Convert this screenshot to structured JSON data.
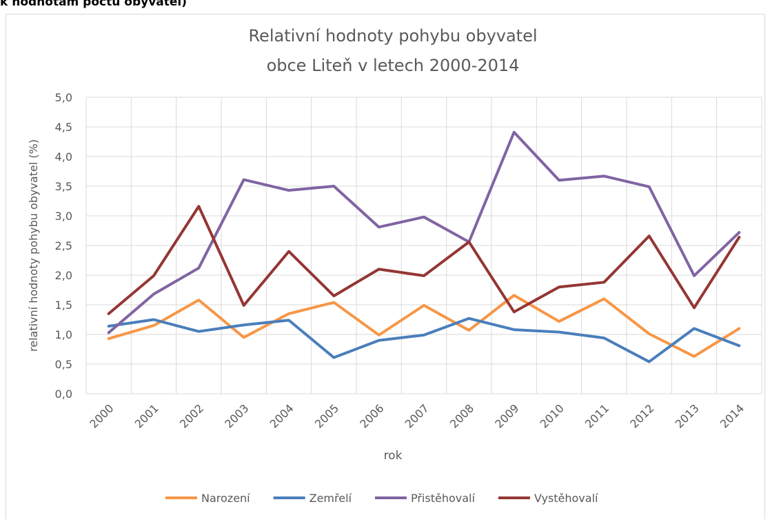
{
  "caption": "k hodnotám počtu obyvatel)",
  "chart_data": {
    "type": "line",
    "title": [
      "Relativní hodnoty pohybu obyvatel",
      "obce Liteň v letech 2000-2014"
    ],
    "x_label": "rok",
    "y_label": "relativní hodnoty pohybu obyvatel (%)",
    "categories": [
      "2000",
      "2001",
      "2002",
      "2003",
      "2004",
      "2005",
      "2006",
      "2007",
      "2008",
      "2009",
      "2010",
      "2011",
      "2012",
      "2013",
      "2014"
    ],
    "series": [
      {
        "name": "Narození",
        "color": "#f79646",
        "values": [
          0.93,
          1.15,
          1.58,
          0.95,
          1.35,
          1.54,
          0.99,
          1.49,
          1.07,
          1.66,
          1.22,
          1.6,
          1.01,
          0.63,
          1.1
        ]
      },
      {
        "name": "Zemřelí",
        "color": "#4a7ebb",
        "values": [
          1.14,
          1.25,
          1.05,
          1.16,
          1.24,
          0.61,
          0.9,
          0.99,
          1.27,
          1.08,
          1.04,
          0.94,
          0.54,
          1.1,
          0.81
        ]
      },
      {
        "name": "Přistěhovalí",
        "color": "#8064a2",
        "values": [
          1.03,
          1.68,
          2.12,
          3.61,
          3.43,
          3.5,
          2.81,
          2.98,
          2.56,
          4.41,
          3.6,
          3.67,
          3.49,
          1.99,
          2.72
        ]
      },
      {
        "name": "Vystěhovalí",
        "color": "#943634",
        "values": [
          1.35,
          1.99,
          3.16,
          1.49,
          2.4,
          1.65,
          2.1,
          1.99,
          2.56,
          1.38,
          1.8,
          1.88,
          2.66,
          1.45,
          2.64
        ]
      }
    ],
    "ylim": [
      0,
      5
    ],
    "yticks": [
      {
        "value": 0,
        "label": "0,0"
      },
      {
        "value": 0.5,
        "label": "0,5"
      },
      {
        "value": 1,
        "label": "1,0"
      },
      {
        "value": 1.5,
        "label": "1,5"
      },
      {
        "value": 2,
        "label": "2,0"
      },
      {
        "value": 2.5,
        "label": "2,5"
      },
      {
        "value": 3,
        "label": "3,0"
      },
      {
        "value": 3.5,
        "label": "3,5"
      },
      {
        "value": 4,
        "label": "4,0"
      },
      {
        "value": 4.5,
        "label": "4,5"
      },
      {
        "value": 5,
        "label": "5,0"
      }
    ],
    "grid": true,
    "legend": "bottom"
  }
}
